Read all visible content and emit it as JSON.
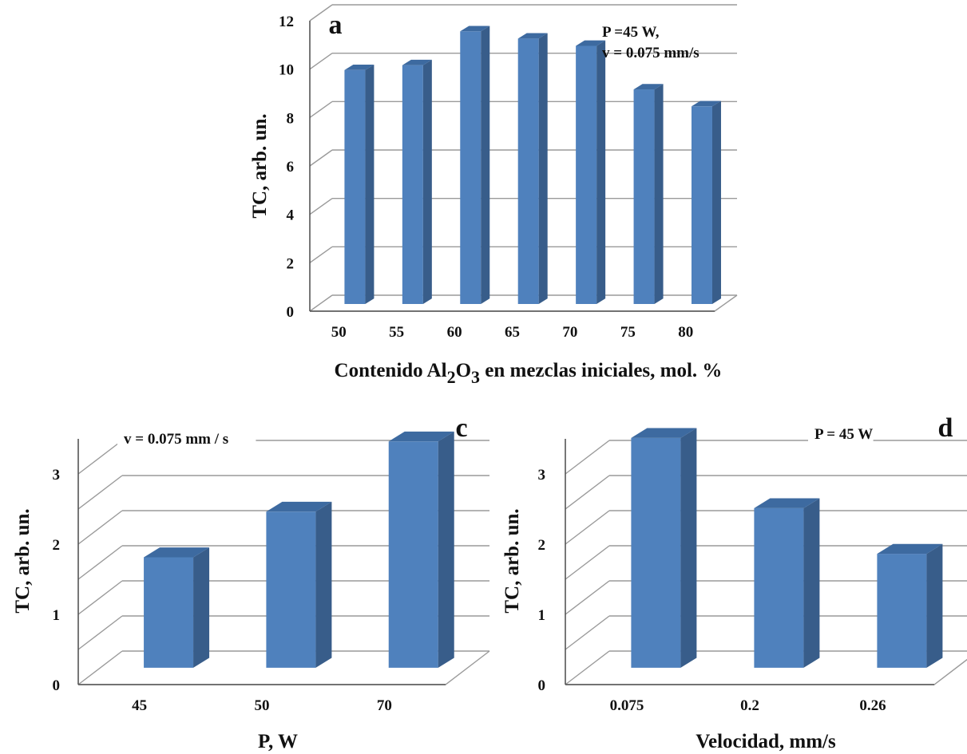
{
  "colors": {
    "bar_front": "#4f81bd",
    "bar_side": "#385d8a",
    "bar_top": "#3d6aa0",
    "grid": "#9a9a9a"
  },
  "chart_data": [
    {
      "panel": "a",
      "type": "bar",
      "categories": [
        "50",
        "55",
        "60",
        "65",
        "70",
        "75",
        "80"
      ],
      "values": [
        9.6,
        9.8,
        11.2,
        10.9,
        10.6,
        8.8,
        8.1
      ],
      "ylabel": "TC, arb. un.",
      "xlabel_parts": [
        "Contenido Al",
        "2",
        "O",
        "3",
        " en mezclas iniciales, mol. %"
      ],
      "ylim": [
        0,
        12
      ],
      "yticks": [
        "0",
        "2",
        "4",
        "6",
        "8",
        "10",
        "12"
      ],
      "annotation": [
        "P =45 W,",
        "v = 0.075 mm/s"
      ],
      "grid": true,
      "projection": "3d"
    },
    {
      "panel": "c",
      "type": "bar",
      "categories": [
        "45",
        "50",
        "70"
      ],
      "values": [
        1.55,
        2.2,
        3.2
      ],
      "ylabel": "TC, arb. un.",
      "xlabel": "P, W",
      "ylim": [
        0,
        3.5
      ],
      "yticks": [
        "0",
        "1",
        "2",
        "3"
      ],
      "annotation": [
        "v  = 0.075 mm / s"
      ],
      "grid": true,
      "projection": "3d"
    },
    {
      "panel": "d",
      "type": "bar",
      "categories": [
        "0.075",
        "0.2",
        "0.26"
      ],
      "values": [
        3.25,
        2.25,
        1.6
      ],
      "ylabel": "TC, arb. un.",
      "xlabel": "Velocidad, mm/s",
      "ylim": [
        0,
        3.5
      ],
      "yticks": [
        "0",
        "1",
        "2",
        "3"
      ],
      "annotation": [
        "P = 45 W"
      ],
      "grid": true,
      "projection": "3d"
    }
  ]
}
